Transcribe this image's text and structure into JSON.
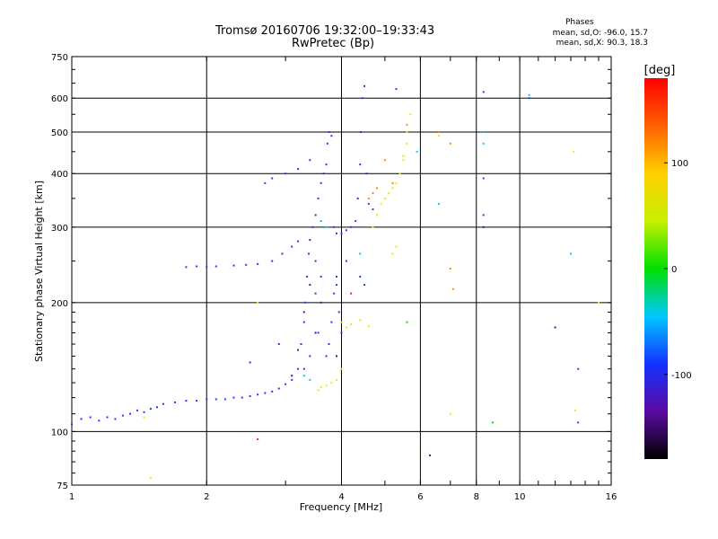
{
  "title_line1": "Tromsø 20160706 19:32:00–19:33:43",
  "title_line2": "RwPretec (Bp)",
  "phases": {
    "title": "Phases",
    "stat_o": "mean, sd,O:  -96.0, 15.7",
    "stat_x": "mean, sd,X:  90.3, 18.3"
  },
  "colorbar": {
    "unit": "[deg]",
    "ticks": [
      {
        "value": 100,
        "label": "100"
      },
      {
        "value": 0,
        "label": "0"
      },
      {
        "value": -100,
        "label": "-100"
      }
    ],
    "range": [
      -180,
      180
    ],
    "colors": [
      "#000000",
      "#5a0aa0",
      "#1432ff",
      "#00c8ff",
      "#00e000",
      "#c8f000",
      "#ffd000",
      "#ff6000",
      "#ff0000"
    ]
  },
  "chart_data": {
    "type": "scatter",
    "title": "Tromsø 20160706 19:32:00–19:33:43",
    "subtitle": "RwPretec (Bp)",
    "xlabel": "Frequency [MHz]",
    "ylabel": "Stationary phase Virtual Height [km]",
    "xscale": "log",
    "yscale": "log",
    "xlim": [
      1,
      16
    ],
    "ylim": [
      75,
      750
    ],
    "xticks": [
      1,
      2,
      4,
      6,
      8,
      10,
      16
    ],
    "xtick_labels": [
      "1",
      "2",
      "4",
      "6",
      "8",
      "10",
      "16"
    ],
    "yticks": [
      75,
      100,
      200,
      300,
      400,
      500,
      600,
      750
    ],
    "ytick_labels": [
      "75",
      "100",
      "200",
      "300",
      "400",
      "500",
      "600",
      "750"
    ],
    "grid": true,
    "series": [
      {
        "color": "#1e3cff",
        "points": [
          [
            1.0,
            104
          ],
          [
            1.05,
            107
          ],
          [
            1.1,
            108
          ],
          [
            1.15,
            106
          ],
          [
            1.2,
            108
          ],
          [
            1.25,
            107
          ],
          [
            1.3,
            109
          ],
          [
            1.35,
            110
          ],
          [
            1.4,
            112
          ],
          [
            1.45,
            111
          ],
          [
            1.5,
            113
          ],
          [
            1.55,
            114
          ],
          [
            1.6,
            116
          ],
          [
            1.7,
            117
          ],
          [
            1.8,
            118
          ],
          [
            1.9,
            118
          ],
          [
            2.0,
            119
          ],
          [
            2.1,
            119
          ],
          [
            2.2,
            119
          ],
          [
            2.3,
            120
          ],
          [
            2.4,
            120
          ],
          [
            2.5,
            121
          ],
          [
            2.6,
            122
          ],
          [
            2.7,
            123
          ],
          [
            2.8,
            124
          ],
          [
            2.9,
            126
          ],
          [
            3.0,
            129
          ],
          [
            3.1,
            132
          ],
          [
            3.2,
            140
          ],
          [
            3.25,
            160
          ],
          [
            3.3,
            180
          ],
          [
            3.32,
            200
          ],
          [
            3.35,
            230
          ],
          [
            3.38,
            260
          ],
          [
            3.4,
            280
          ],
          [
            3.45,
            300
          ],
          [
            3.5,
            320
          ],
          [
            3.55,
            350
          ],
          [
            3.6,
            380
          ],
          [
            3.65,
            400
          ],
          [
            3.7,
            420
          ],
          [
            3.72,
            470
          ],
          [
            3.75,
            500
          ],
          [
            3.8,
            490
          ],
          [
            3.85,
            300
          ],
          [
            3.9,
            290
          ],
          [
            4.0,
            290
          ],
          [
            4.1,
            295
          ],
          [
            4.2,
            300
          ],
          [
            4.3,
            310
          ],
          [
            4.35,
            350
          ],
          [
            4.4,
            420
          ],
          [
            4.42,
            500
          ],
          [
            4.45,
            600
          ],
          [
            4.5,
            640
          ],
          [
            4.55,
            400
          ],
          [
            4.6,
            340
          ],
          [
            4.7,
            330
          ],
          [
            1.8,
            242
          ],
          [
            1.9,
            243
          ],
          [
            2.0,
            242
          ],
          [
            2.1,
            243
          ],
          [
            2.3,
            244
          ],
          [
            2.45,
            245
          ],
          [
            2.6,
            246
          ],
          [
            2.8,
            250
          ],
          [
            2.95,
            260
          ],
          [
            3.1,
            270
          ],
          [
            3.2,
            278
          ],
          [
            3.7,
            150
          ],
          [
            3.75,
            160
          ],
          [
            3.8,
            180
          ],
          [
            3.85,
            210
          ],
          [
            3.9,
            230
          ],
          [
            3.95,
            190
          ],
          [
            4.0,
            170
          ],
          [
            4.4,
            230
          ],
          [
            4.5,
            220
          ],
          [
            3.5,
            210
          ],
          [
            3.6,
            230
          ],
          [
            3.5,
            250
          ],
          [
            3.55,
            170
          ],
          [
            3.4,
            150
          ],
          [
            3.3,
            140
          ],
          [
            2.7,
            380
          ],
          [
            2.8,
            390
          ],
          [
            3.0,
            400
          ],
          [
            3.2,
            410
          ],
          [
            3.4,
            430
          ]
        ]
      },
      {
        "color": "#e6f000",
        "points": [
          [
            3.55,
            125
          ],
          [
            3.6,
            127
          ],
          [
            3.7,
            128
          ],
          [
            3.8,
            130
          ],
          [
            3.9,
            132
          ],
          [
            4.0,
            140
          ],
          [
            4.0,
            180
          ],
          [
            4.1,
            175
          ],
          [
            4.2,
            178
          ],
          [
            4.4,
            182
          ],
          [
            4.6,
            176
          ],
          [
            4.7,
            300
          ],
          [
            4.8,
            320
          ],
          [
            4.9,
            340
          ],
          [
            5.0,
            350
          ],
          [
            5.1,
            360
          ],
          [
            5.2,
            370
          ],
          [
            5.3,
            380
          ],
          [
            5.4,
            400
          ],
          [
            5.5,
            430
          ],
          [
            5.6,
            470
          ],
          [
            5.6,
            500
          ],
          [
            5.7,
            550
          ],
          [
            5.2,
            260
          ],
          [
            5.3,
            270
          ],
          [
            5.5,
            440
          ]
        ]
      },
      {
        "color": "#ff8c00",
        "points": [
          [
            4.6,
            350
          ],
          [
            4.7,
            360
          ],
          [
            4.8,
            370
          ],
          [
            5.0,
            430
          ],
          [
            5.2,
            380
          ],
          [
            5.6,
            520
          ],
          [
            6.6,
            500
          ],
          [
            7.0,
            470
          ],
          [
            7.0,
            240
          ],
          [
            7.1,
            215
          ]
        ]
      },
      {
        "color": "#00c8ff",
        "points": [
          [
            3.3,
            135
          ],
          [
            3.4,
            132
          ],
          [
            3.6,
            310
          ],
          [
            3.7,
            300
          ],
          [
            4.4,
            260
          ],
          [
            5.9,
            450
          ],
          [
            6.6,
            340
          ],
          [
            8.3,
            500
          ],
          [
            8.3,
            470
          ],
          [
            10.5,
            610
          ],
          [
            13.0,
            260
          ]
        ]
      },
      {
        "color": "#5a0aa0",
        "points": [
          [
            3.1,
            135
          ],
          [
            3.2,
            155
          ],
          [
            3.3,
            190
          ],
          [
            3.4,
            220
          ],
          [
            3.5,
            170
          ],
          [
            3.6,
            200
          ],
          [
            3.9,
            150
          ],
          [
            6.3,
            88
          ],
          [
            12.0,
            175
          ],
          [
            8.3,
            300
          ]
        ]
      },
      {
        "color": "#ff2000",
        "points": [
          [
            2.6,
            96
          ],
          [
            4.2,
            210
          ]
        ]
      },
      {
        "color": "#00e000",
        "points": [
          [
            8.7,
            105
          ],
          [
            5.6,
            180
          ]
        ]
      },
      {
        "color": "#e6f000",
        "points": [
          [
            6.6,
            490
          ],
          [
            7.0,
            110
          ],
          [
            13.2,
            450
          ],
          [
            13.3,
            112
          ],
          [
            15.0,
            200
          ],
          [
            1.5,
            78
          ],
          [
            1.45,
            108
          ],
          [
            2.6,
            200
          ]
        ]
      },
      {
        "color": "#1e3cff",
        "points": [
          [
            5.3,
            630
          ],
          [
            8.3,
            620
          ],
          [
            8.3,
            390
          ],
          [
            8.3,
            320
          ],
          [
            10.5,
            600
          ],
          [
            13.5,
            140
          ],
          [
            13.5,
            105
          ],
          [
            3.9,
            220
          ],
          [
            4.1,
            250
          ],
          [
            2.9,
            160
          ],
          [
            2.5,
            145
          ]
        ]
      }
    ]
  }
}
